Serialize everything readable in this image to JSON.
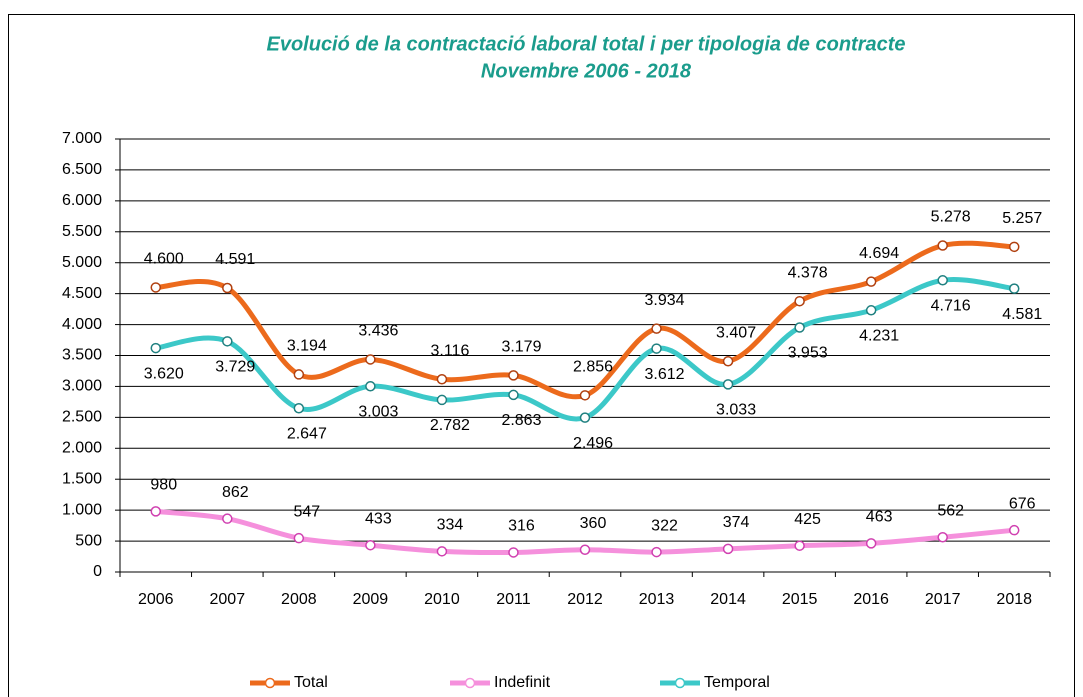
{
  "chart_data": {
    "type": "line",
    "title": "Evolució de la contractació  laboral total i per tipologia de contracte",
    "subtitle": "Novembre 2006 - 2018",
    "categories": [
      "2006",
      "2007",
      "2008",
      "2009",
      "2010",
      "2011",
      "2012",
      "2013",
      "2014",
      "2015",
      "2016",
      "2017",
      "2018"
    ],
    "series": [
      {
        "name": "Total",
        "color": "#ec6a1c",
        "values": [
          4600,
          4591,
          3194,
          3436,
          3116,
          3179,
          2856,
          3934,
          3407,
          4378,
          4694,
          5278,
          5257
        ],
        "value_labels": [
          "4.600",
          "4.591",
          "3.194",
          "3.436",
          "3.116",
          "3.179",
          "2.856",
          "3.934",
          "3.407",
          "4.378",
          "4.694",
          "5.278",
          "5.257"
        ]
      },
      {
        "name": "Indefinit",
        "color": "#f590dc",
        "values": [
          980,
          862,
          547,
          433,
          334,
          316,
          360,
          322,
          374,
          425,
          463,
          562,
          676
        ]
      },
      {
        "name": "Temporal",
        "color": "#3cc8c8",
        "values": [
          3620,
          3729,
          2647,
          3003,
          2782,
          2863,
          2496,
          3612,
          3033,
          3953,
          4231,
          4716,
          4581
        ],
        "value_labels": [
          "3.620",
          "3.729",
          "2.647",
          "3.003",
          "2.782",
          "2.863",
          "2.496",
          "3.612",
          "3.033",
          "3.953",
          "4.231",
          "4.716",
          "4.581"
        ]
      }
    ],
    "ylim": [
      0,
      7000
    ],
    "yticks": [
      0,
      500,
      {
        "value": 1000,
        "label": "1.000"
      },
      {
        "value": 1500,
        "label": "1.500"
      },
      {
        "value": 2000,
        "label": "2.000"
      },
      {
        "value": 2500,
        "label": "2.500"
      },
      {
        "value": 3000,
        "label": "3.000"
      },
      {
        "value": 3500,
        "label": "3.500"
      },
      {
        "value": 4000,
        "label": "4.000"
      },
      {
        "value": 4500,
        "label": "4.500"
      },
      {
        "value": 5000,
        "label": "5.000"
      },
      {
        "value": 5500,
        "label": "5.500"
      },
      {
        "value": 6000,
        "label": "6.000"
      },
      {
        "value": 6500,
        "label": "6.500"
      },
      {
        "value": 7000,
        "label": "7.000"
      }
    ],
    "grid": true,
    "legend": "bottom"
  }
}
